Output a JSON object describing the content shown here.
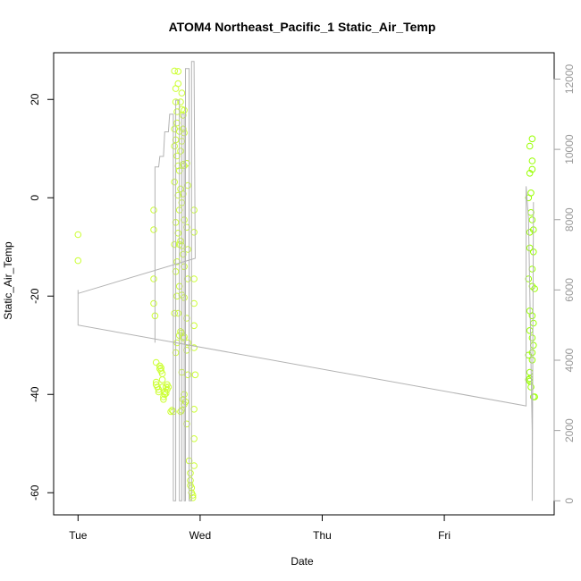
{
  "chart_data": {
    "type": "scatter",
    "title": "ATOM4 Northeast_Pacific_1 Static_Air_Temp",
    "xlabel": "Date",
    "ylabel": "Static_Air_Temp",
    "x_axis": {
      "unit": "days from Tue 00:00",
      "range": [
        -0.2,
        3.9
      ],
      "ticks": [
        {
          "value": 0,
          "label": "Tue"
        },
        {
          "value": 1,
          "label": "Wed"
        },
        {
          "value": 2,
          "label": "Thu"
        },
        {
          "value": 3,
          "label": "Fri"
        }
      ]
    },
    "y_axis_left": {
      "range": [
        -64.5,
        29.5
      ],
      "ticks": [
        -60,
        -40,
        -20,
        0,
        20
      ]
    },
    "y_axis_right": {
      "range": [
        -400,
        12750
      ],
      "ticks": [
        0,
        2000,
        4000,
        6000,
        8000,
        10000,
        12000
      ],
      "color": "#a0a0a0"
    },
    "series": [
      {
        "kind": "points",
        "color": "#ccff33",
        "points": [
          [
            0.0,
            -7.5
          ],
          [
            0.0,
            -12.8
          ],
          [
            0.62,
            -2.5
          ],
          [
            0.62,
            -6.5
          ],
          [
            0.62,
            -16.5
          ],
          [
            0.62,
            -21.5
          ],
          [
            0.63,
            -24
          ],
          [
            0.64,
            -33.5
          ],
          [
            0.64,
            -37.5
          ],
          [
            0.64,
            -38
          ],
          [
            0.65,
            -38.5
          ],
          [
            0.66,
            -39
          ],
          [
            0.66,
            -39.5
          ],
          [
            0.67,
            -34.2
          ],
          [
            0.67,
            -34.8
          ],
          [
            0.68,
            -35.2
          ],
          [
            0.68,
            -34.6
          ],
          [
            0.69,
            -35.8
          ],
          [
            0.69,
            -37
          ],
          [
            0.69,
            -38.5
          ],
          [
            0.7,
            -40.5
          ],
          [
            0.7,
            -41
          ],
          [
            0.71,
            -39.5
          ],
          [
            0.71,
            -40
          ],
          [
            0.72,
            -38.5
          ],
          [
            0.72,
            -39.8
          ],
          [
            0.73,
            -39
          ],
          [
            0.73,
            -38
          ],
          [
            0.74,
            -38.5
          ],
          [
            0.76,
            -43.5
          ],
          [
            0.77,
            -43.2
          ],
          [
            0.78,
            -43.5
          ],
          [
            0.79,
            25.8
          ],
          [
            0.79,
            3.2
          ],
          [
            0.79,
            10.5
          ],
          [
            0.79,
            14
          ],
          [
            0.79,
            -9.5
          ],
          [
            0.79,
            -23.5
          ],
          [
            0.8,
            19.5
          ],
          [
            0.8,
            22.2
          ],
          [
            0.8,
            11.8
          ],
          [
            0.8,
            -5
          ],
          [
            0.8,
            -15
          ],
          [
            0.8,
            -31.5
          ],
          [
            0.81,
            15.2
          ],
          [
            0.81,
            17.5
          ],
          [
            0.81,
            8.5
          ],
          [
            0.81,
            -13
          ],
          [
            0.81,
            -20
          ],
          [
            0.81,
            -29.5
          ],
          [
            0.82,
            25.7
          ],
          [
            0.82,
            23.2
          ],
          [
            0.82,
            6.5
          ],
          [
            0.82,
            0.5
          ],
          [
            0.82,
            -7.2
          ],
          [
            0.82,
            -23.5
          ],
          [
            0.83,
            13.5
          ],
          [
            0.83,
            5.5
          ],
          [
            0.83,
            -2.5
          ],
          [
            0.83,
            -9.5
          ],
          [
            0.83,
            -18
          ],
          [
            0.83,
            -28
          ],
          [
            0.84,
            19.5
          ],
          [
            0.84,
            9.5
          ],
          [
            0.84,
            1.8
          ],
          [
            0.84,
            -8.8
          ],
          [
            0.84,
            -27.2
          ],
          [
            0.84,
            -43.5
          ],
          [
            0.85,
            21.3
          ],
          [
            0.85,
            18
          ],
          [
            0.85,
            11.5
          ],
          [
            0.85,
            -1
          ],
          [
            0.85,
            -9.8
          ],
          [
            0.85,
            -19.8
          ],
          [
            0.85,
            -27.5
          ],
          [
            0.85,
            -35.5
          ],
          [
            0.85,
            -43.2
          ],
          [
            0.86,
            -41
          ],
          [
            0.86,
            16.8
          ],
          [
            0.86,
            14
          ],
          [
            0.86,
            6.8
          ],
          [
            0.86,
            0.8
          ],
          [
            0.86,
            -11.5
          ],
          [
            0.86,
            -28.5
          ],
          [
            0.87,
            17.8
          ],
          [
            0.87,
            13.2
          ],
          [
            0.87,
            6.5
          ],
          [
            0.87,
            -4.5
          ],
          [
            0.87,
            -14
          ],
          [
            0.87,
            -20.3
          ],
          [
            0.87,
            -28.3
          ],
          [
            0.87,
            -40
          ],
          [
            0.87,
            -42
          ],
          [
            0.88,
            -41.5
          ],
          [
            0.89,
            7
          ],
          [
            0.89,
            -6
          ],
          [
            0.89,
            -24.5
          ],
          [
            0.89,
            -31
          ],
          [
            0.89,
            -46
          ],
          [
            0.9,
            2.5
          ],
          [
            0.9,
            -10.5
          ],
          [
            0.9,
            -16.5
          ],
          [
            0.9,
            -29.5
          ],
          [
            0.9,
            -36
          ],
          [
            0.91,
            -53.5
          ],
          [
            0.92,
            -56
          ],
          [
            0.92,
            -57.5
          ],
          [
            0.92,
            -58.5
          ],
          [
            0.93,
            -59
          ],
          [
            0.93,
            -60
          ],
          [
            0.94,
            -60.5
          ],
          [
            0.94,
            -61
          ],
          [
            0.95,
            -49
          ],
          [
            0.95,
            -2.5
          ],
          [
            0.95,
            -7
          ],
          [
            0.95,
            -16.5
          ],
          [
            0.95,
            -21.5
          ],
          [
            0.95,
            -26
          ],
          [
            0.95,
            -30.5
          ],
          [
            0.95,
            -43
          ],
          [
            0.95,
            -54.5
          ],
          [
            0.96,
            -36
          ]
        ]
      },
      {
        "kind": "points",
        "color": "#99ff00",
        "points": [
          [
            3.7,
            10.5
          ],
          [
            3.72,
            12
          ],
          [
            3.72,
            7.5
          ],
          [
            3.72,
            5.8
          ],
          [
            3.7,
            5
          ],
          [
            3.71,
            1
          ],
          [
            3.69,
            0
          ],
          [
            3.71,
            -3
          ],
          [
            3.72,
            -4.5
          ],
          [
            3.7,
            -7
          ],
          [
            3.73,
            -6.5
          ],
          [
            3.73,
            -11
          ],
          [
            3.7,
            -10.2
          ],
          [
            3.72,
            -14.5
          ],
          [
            3.69,
            -16.5
          ],
          [
            3.72,
            -18
          ],
          [
            3.74,
            -18.5
          ],
          [
            3.7,
            -23
          ],
          [
            3.72,
            -24
          ],
          [
            3.73,
            -25.5
          ],
          [
            3.7,
            -27
          ],
          [
            3.72,
            -28.5
          ],
          [
            3.73,
            -30
          ],
          [
            3.72,
            -31.5
          ],
          [
            3.69,
            -32
          ],
          [
            3.72,
            -33
          ],
          [
            3.7,
            -35.5
          ],
          [
            3.69,
            -37
          ],
          [
            3.7,
            -36.8
          ],
          [
            3.7,
            -37.3
          ],
          [
            3.71,
            -38.5
          ],
          [
            3.73,
            -40.5
          ],
          [
            3.74,
            -40.5
          ]
        ]
      },
      {
        "kind": "line",
        "axis": "right",
        "color": "#b3b3b3",
        "points": [
          [
            0.0,
            6000
          ],
          [
            0.0,
            5000
          ],
          [
            3.67,
            2700
          ],
          [
            3.67,
            8950
          ],
          [
            3.69,
            8000
          ],
          [
            3.7,
            6000
          ],
          [
            3.71,
            4000
          ],
          [
            3.72,
            2000
          ],
          [
            3.72,
            0
          ],
          [
            3.73,
            8500
          ]
        ]
      },
      {
        "kind": "line",
        "axis": "right",
        "color": "#b3b3b3",
        "points": [
          [
            0.63,
            4500
          ],
          [
            0.63,
            9500
          ],
          [
            0.64,
            9500
          ],
          [
            0.64,
            9500
          ],
          [
            0.66,
            9500
          ],
          [
            0.67,
            9800
          ],
          [
            0.7,
            9800
          ],
          [
            0.71,
            10500
          ],
          [
            0.74,
            10500
          ],
          [
            0.75,
            11000
          ],
          [
            0.78,
            11000
          ],
          [
            0.78,
            0
          ],
          [
            0.8,
            0
          ],
          [
            0.8,
            11400
          ],
          [
            0.83,
            11400
          ],
          [
            0.83,
            0
          ],
          [
            0.85,
            0
          ],
          [
            0.85,
            11000
          ],
          [
            0.87,
            11000
          ],
          [
            0.87,
            0
          ],
          [
            0.88,
            0
          ],
          [
            0.88,
            12300
          ],
          [
            0.91,
            12300
          ],
          [
            0.91,
            0
          ],
          [
            0.93,
            0
          ],
          [
            0.93,
            12500
          ],
          [
            0.95,
            12500
          ],
          [
            0.96,
            6900
          ],
          [
            0.0,
            5900
          ]
        ]
      }
    ],
    "right_axis_grid": false,
    "grid": false,
    "legend": false
  }
}
